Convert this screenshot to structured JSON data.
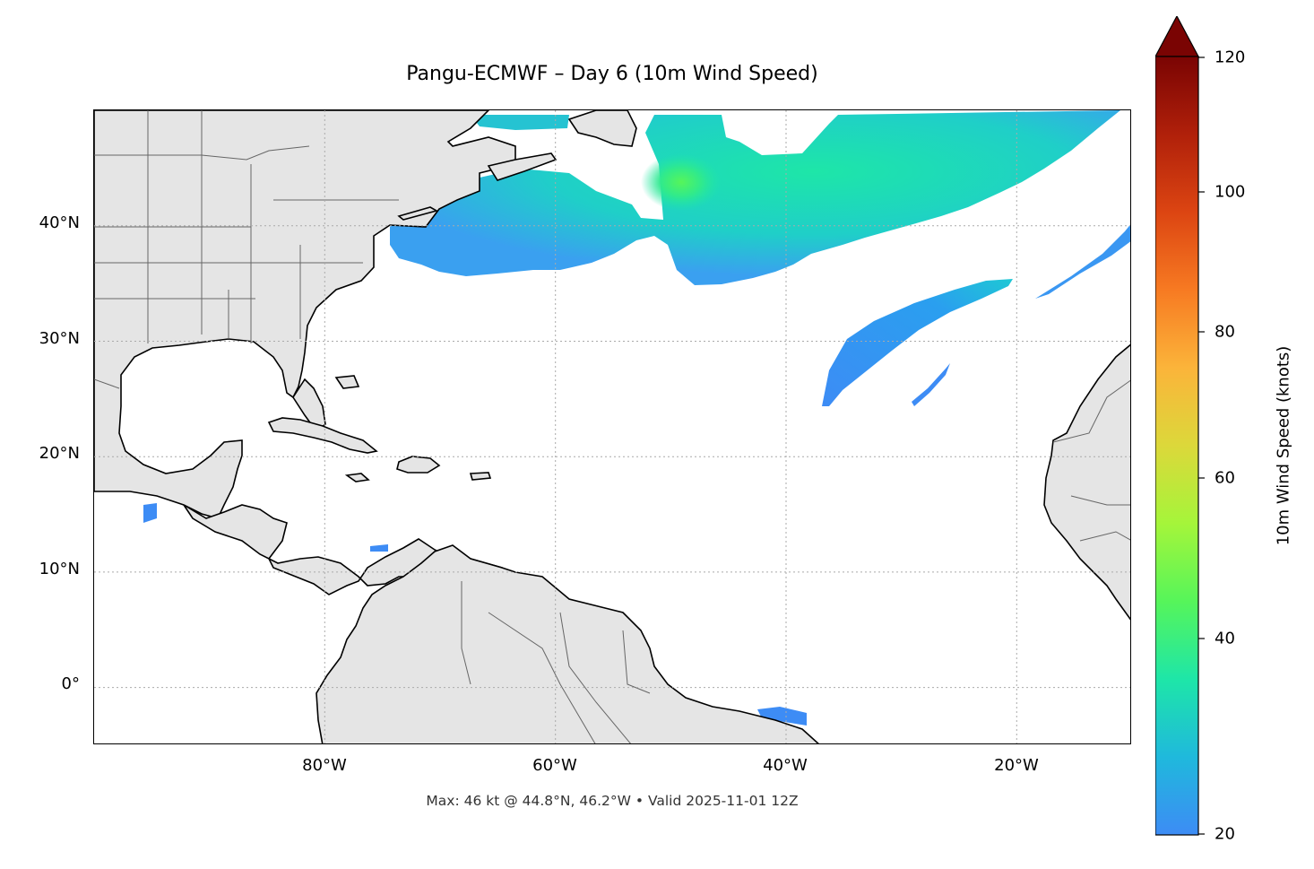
{
  "title": "Pangu-ECMWF – Day 6 (10m Wind Speed)",
  "footnote": "Max: 46 kt @ 44.8°N, 46.2°W • Valid 2025-11-01 12Z",
  "map": {
    "extent_lon": [
      -100,
      -10
    ],
    "extent_lat": [
      -5,
      50
    ],
    "lat_ticks": [
      {
        "value": 40,
        "label": "40°N"
      },
      {
        "value": 30,
        "label": "30°N"
      },
      {
        "value": 20,
        "label": "20°N"
      },
      {
        "value": 10,
        "label": "10°N"
      },
      {
        "value": 0,
        "label": "0°"
      }
    ],
    "lon_ticks": [
      {
        "value": -80,
        "label": "80°W"
      },
      {
        "value": -60,
        "label": "60°W"
      },
      {
        "value": -40,
        "label": "40°W"
      },
      {
        "value": -20,
        "label": "20°W"
      }
    ],
    "gridlines": true,
    "land_color": "#e5e5e5",
    "coast_color": "#000000",
    "border_color": "#666666"
  },
  "colorbar": {
    "label": "10m Wind Speed (knots)",
    "min": 20,
    "max": 120,
    "extend": "max",
    "ticks": [
      {
        "value": 120,
        "label": "120"
      },
      {
        "value": 100,
        "label": "100"
      },
      {
        "value": 80,
        "label": "80"
      },
      {
        "value": 60,
        "label": "60"
      },
      {
        "value": 40,
        "label": "40"
      },
      {
        "value": 20,
        "label": "20"
      }
    ],
    "colors": [
      "#3d8cf5",
      "#1fb9dc",
      "#1ee6a8",
      "#56f55a",
      "#a5f53a",
      "#dcd83a",
      "#fbb43a",
      "#f77a22",
      "#dc4512",
      "#b0200a",
      "#7a0403"
    ]
  },
  "wind_max": {
    "speed_kt": 46,
    "lat": 44.8,
    "lon": -46.2
  }
}
